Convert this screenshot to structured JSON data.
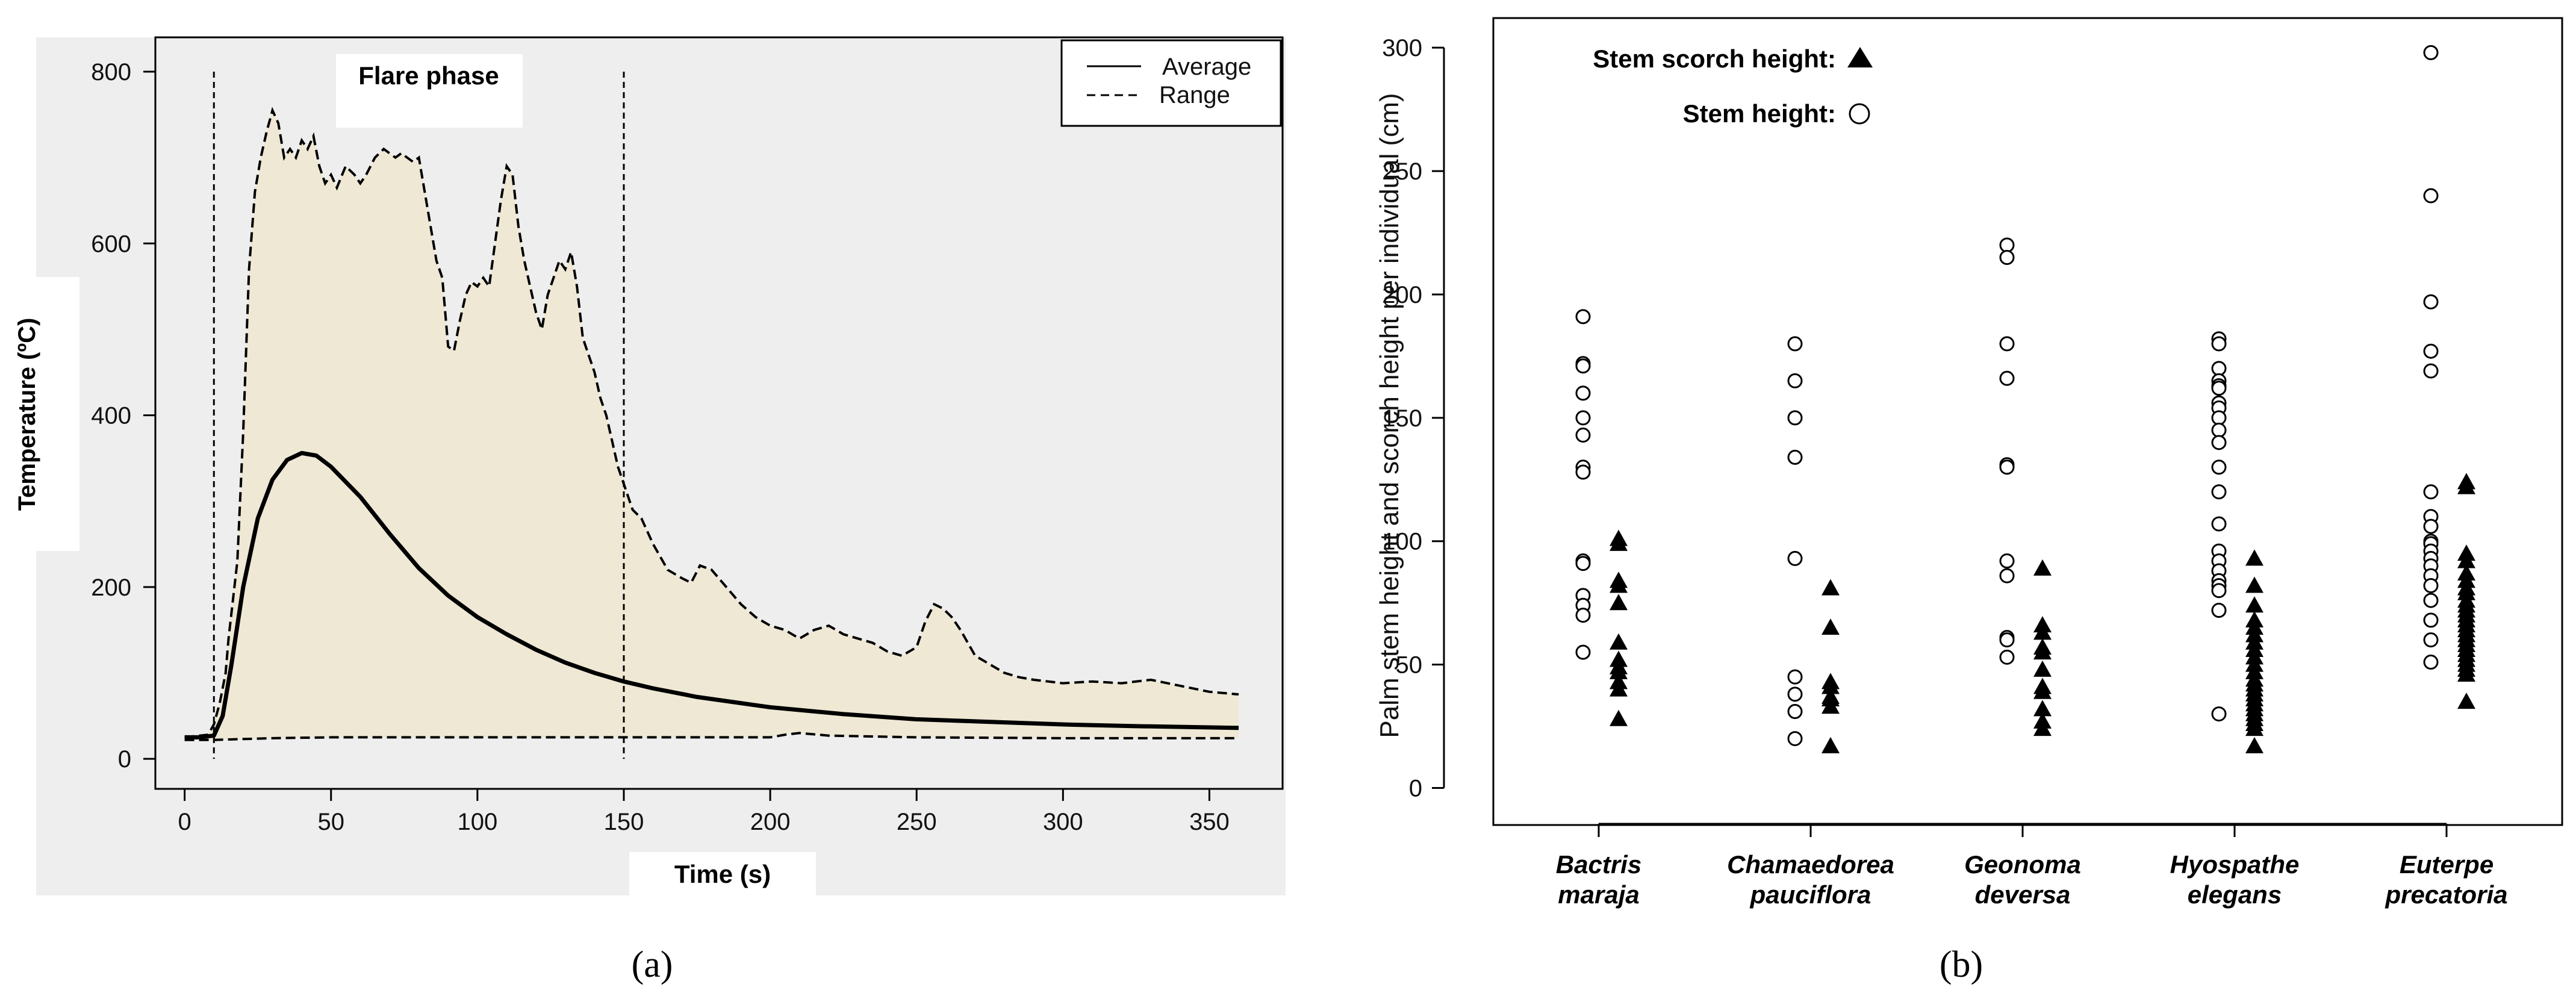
{
  "figure": {
    "panel_a_label": "(a)",
    "panel_b_label": "(b)",
    "colors": {
      "panel_bg": "#eeeeee",
      "fill_range": "#eee8d4",
      "line": "#000000",
      "marker": "#000000"
    }
  },
  "chart_data": [
    {
      "type": "line",
      "xlabel": "Time (s)",
      "ylabel": "Temperature (ºC)",
      "annotation": "Flare phase",
      "flare_phase_bounds": [
        10,
        150
      ],
      "xlim": [
        -10,
        375
      ],
      "ylim": [
        -35,
        840
      ],
      "xticks": [
        0,
        50,
        100,
        150,
        200,
        250,
        300,
        350
      ],
      "yticks": [
        0,
        200,
        400,
        600,
        800
      ],
      "legend": {
        "position": "top-right",
        "entries": [
          {
            "label": "Average",
            "style": "solid"
          },
          {
            "label": "Range",
            "style": "dashed"
          }
        ]
      },
      "series": [
        {
          "name": "Average",
          "style": "solid",
          "x": [
            0,
            5,
            10,
            13,
            16,
            20,
            25,
            30,
            35,
            40,
            45,
            50,
            60,
            70,
            80,
            90,
            100,
            110,
            120,
            130,
            140,
            150,
            160,
            175,
            200,
            225,
            250,
            275,
            300,
            325,
            360
          ],
          "y": [
            25,
            25,
            27,
            50,
            110,
            200,
            280,
            325,
            348,
            356,
            353,
            340,
            305,
            262,
            222,
            190,
            165,
            145,
            127,
            112,
            100,
            90,
            82,
            72,
            60,
            52,
            46,
            43,
            40,
            38,
            36
          ]
        },
        {
          "name": "Range (max)",
          "style": "dashed",
          "x": [
            0,
            8,
            10,
            12,
            14,
            15,
            17,
            18,
            20,
            22,
            24,
            26,
            28,
            30,
            32,
            34,
            36,
            38,
            40,
            42,
            44,
            46,
            48,
            50,
            52,
            55,
            58,
            60,
            62,
            65,
            68,
            70,
            72,
            74,
            76,
            78,
            80,
            82,
            84,
            86,
            88,
            90,
            92,
            94,
            96,
            98,
            100,
            102,
            104,
            106,
            108,
            110,
            112,
            114,
            116,
            118,
            120,
            122,
            124,
            126,
            128,
            130,
            132,
            134,
            136,
            138,
            140,
            142,
            144,
            146,
            148,
            150,
            153,
            156,
            160,
            165,
            170,
            173,
            176,
            180,
            185,
            190,
            195,
            200,
            205,
            210,
            215,
            220,
            225,
            230,
            235,
            240,
            245,
            250,
            253,
            256,
            259,
            262,
            265,
            270,
            275,
            280,
            285,
            290,
            300,
            310,
            320,
            330,
            340,
            350,
            360
          ],
          "y": [
            25,
            28,
            40,
            65,
            100,
            140,
            200,
            230,
            380,
            570,
            660,
            700,
            730,
            755,
            740,
            700,
            710,
            700,
            720,
            710,
            725,
            690,
            670,
            680,
            665,
            690,
            680,
            670,
            680,
            700,
            710,
            705,
            700,
            705,
            700,
            695,
            700,
            660,
            620,
            580,
            560,
            480,
            475,
            510,
            540,
            555,
            550,
            560,
            550,
            600,
            650,
            690,
            680,
            620,
            580,
            550,
            520,
            500,
            540,
            560,
            580,
            570,
            590,
            550,
            490,
            470,
            450,
            420,
            400,
            370,
            340,
            320,
            290,
            280,
            250,
            220,
            210,
            205,
            225,
            220,
            200,
            180,
            165,
            155,
            150,
            140,
            150,
            155,
            145,
            140,
            135,
            125,
            120,
            130,
            160,
            180,
            175,
            165,
            150,
            120,
            110,
            100,
            95,
            92,
            88,
            90,
            88,
            92,
            85,
            78,
            75
          ]
        },
        {
          "name": "Range (min)",
          "style": "dashed",
          "x": [
            0,
            10,
            20,
            30,
            50,
            100,
            150,
            200,
            205,
            210,
            220,
            250,
            300,
            360
          ],
          "y": [
            22,
            22,
            23,
            24,
            25,
            25,
            25,
            25,
            28,
            30,
            27,
            25,
            24,
            24
          ]
        }
      ]
    },
    {
      "type": "scatter",
      "ylabel": "Palm stem height and scorch height per individual (cm)",
      "ylim": [
        -15,
        312
      ],
      "yticks": [
        0,
        50,
        100,
        150,
        200,
        250,
        300
      ],
      "categories": [
        {
          "genus": "Bactris",
          "species": "maraja"
        },
        {
          "genus": "Chamaedorea",
          "species": "pauciflora"
        },
        {
          "genus": "Geonoma",
          "species": "deversa"
        },
        {
          "genus": "Hyospathe",
          "species": "elegans"
        },
        {
          "genus": "Euterpe",
          "species": "precatoria"
        }
      ],
      "legend": {
        "position": "top-left",
        "entries": [
          {
            "label": "Stem scorch height:",
            "marker": "filled-triangle"
          },
          {
            "label": "Stem height:",
            "marker": "open-circle"
          }
        ]
      },
      "series": [
        {
          "name": "Stem height",
          "marker": "open-circle",
          "values": [
            [
              191,
              172,
              171,
              160,
              150,
              143,
              130,
              128,
              92,
              91,
              78,
              74,
              70,
              55
            ],
            [
              180,
              165,
              150,
              134,
              93,
              45,
              38,
              31,
              20
            ],
            [
              220,
              215,
              180,
              166,
              131,
              130,
              92,
              86,
              61,
              60,
              53
            ],
            [
              182,
              180,
              170,
              165,
              163,
              162,
              156,
              154,
              150,
              145,
              140,
              130,
              120,
              107,
              96,
              92,
              88,
              84,
              82,
              80,
              72,
              30
            ],
            [
              298,
              240,
              197,
              177,
              169,
              120,
              110,
              106,
              100,
              99,
              96,
              93,
              90,
              86,
              82,
              76,
              68,
              60,
              51
            ]
          ]
        },
        {
          "name": "Stem scorch height",
          "marker": "filled-triangle",
          "values": [
            [
              101,
              99,
              84,
              82,
              75,
              59,
              52,
              49,
              47,
              43,
              40,
              28
            ],
            [
              81,
              65,
              43,
              41,
              37,
              36,
              33,
              17
            ],
            [
              89,
              66,
              63,
              57,
              55,
              48,
              41,
              39,
              32,
              27,
              24
            ],
            [
              93,
              82,
              74,
              68,
              65,
              62,
              59,
              56,
              53,
              50,
              47,
              44,
              42,
              40,
              38,
              36,
              34,
              32,
              30,
              28,
              26,
              24,
              17
            ],
            [
              124,
              122,
              95,
              92,
              87,
              84,
              81,
              79,
              76,
              74,
              72,
              70,
              68,
              66,
              64,
              62,
              60,
              58,
              56,
              54,
              52,
              50,
              48,
              46,
              35
            ]
          ]
        }
      ]
    }
  ]
}
